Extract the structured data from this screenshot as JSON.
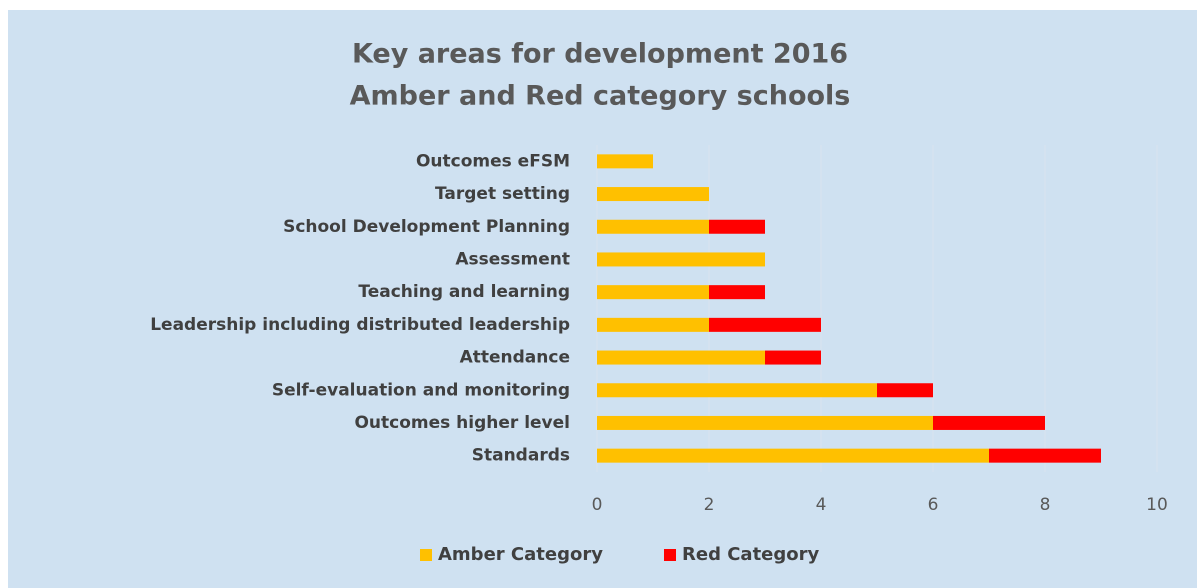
{
  "chart_data": {
    "type": "stacked_barh",
    "title": "Key areas for development 2016",
    "subtitle": "Amber and Red category schools",
    "categories": [
      "Outcomes eFSM",
      "Target setting",
      "School Development Planning",
      "Assessment",
      "Teaching and learning",
      "Leadership including distributed leadership",
      "Attendance",
      "Self-evaluation and monitoring",
      "Outcomes higher level",
      "Standards"
    ],
    "series": [
      {
        "name": "Amber Category",
        "color": "#ffc000",
        "values": [
          1,
          2,
          2,
          3,
          2,
          2,
          3,
          5,
          6,
          7
        ]
      },
      {
        "name": "Red Category",
        "color": "#ff0000",
        "values": [
          0,
          0,
          1,
          0,
          1,
          2,
          1,
          1,
          2,
          2
        ]
      }
    ],
    "xlim": [
      0,
      10
    ],
    "xticks": [
      0,
      2,
      4,
      6,
      8,
      10
    ],
    "grid": true,
    "legend": "bottom"
  }
}
